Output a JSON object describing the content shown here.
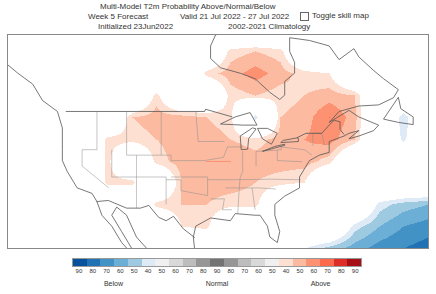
{
  "chart_data": {
    "type": "heatmap",
    "title": "Multi-Model T2m Probability Above/Normal/Below",
    "subtitle": [
      [
        "Week 5 Forecast",
        "Valid 21 Jul 2022 - 27 Jul 2022"
      ],
      [
        "Initialized 23Jun2022",
        "2002-2021 Climatology"
      ]
    ],
    "annotations": [
      "Toggle skill map"
    ],
    "x": [
      -135,
      -130,
      -125,
      -120,
      -115,
      -110,
      -105,
      -100,
      -95,
      -90,
      -85,
      -80,
      -75,
      -70,
      -65,
      -60,
      -55,
      -50
    ],
    "y": [
      24,
      28,
      32,
      36,
      40,
      44,
      48,
      52,
      56,
      60,
      64
    ],
    "cells": [
      [
        0,
        0,
        0,
        0,
        0,
        0,
        0,
        0,
        0,
        0,
        0,
        0,
        -40,
        -55,
        -65,
        -75,
        -80,
        -85
      ],
      [
        0,
        0,
        0,
        0,
        0,
        0,
        0,
        40,
        45,
        0,
        0,
        0,
        0,
        0,
        -45,
        -60,
        -70,
        -75
      ],
      [
        0,
        0,
        0,
        -40,
        0,
        0,
        45,
        50,
        50,
        45,
        45,
        0,
        0,
        0,
        0,
        -45,
        -55,
        -60
      ],
      [
        0,
        0,
        -40,
        0,
        45,
        45,
        0,
        50,
        55,
        55,
        50,
        45,
        40,
        0,
        0,
        0,
        0,
        0
      ],
      [
        0,
        -40,
        0,
        0,
        45,
        0,
        45,
        55,
        60,
        60,
        55,
        55,
        55,
        45,
        0,
        0,
        0,
        0
      ],
      [
        -40,
        -40,
        0,
        0,
        45,
        45,
        50,
        55,
        55,
        50,
        45,
        55,
        60,
        65,
        50,
        0,
        -45,
        0
      ],
      [
        -40,
        -40,
        0,
        0,
        0,
        50,
        55,
        55,
        50,
        45,
        -50,
        50,
        55,
        70,
        55,
        0,
        -50,
        0
      ],
      [
        -40,
        0,
        0,
        0,
        0,
        0,
        45,
        0,
        0,
        45,
        50,
        45,
        50,
        55,
        50,
        0,
        0,
        0
      ],
      [
        0,
        0,
        0,
        0,
        0,
        0,
        0,
        0,
        45,
        55,
        65,
        55,
        45,
        40,
        0,
        0,
        0,
        0
      ],
      [
        0,
        0,
        0,
        0,
        0,
        0,
        0,
        0,
        0,
        45,
        50,
        45,
        0,
        0,
        0,
        0,
        0,
        0
      ],
      [
        0,
        0,
        0,
        0,
        0,
        0,
        0,
        0,
        0,
        0,
        0,
        0,
        0,
        0,
        0,
        0,
        0,
        0
      ]
    ],
    "xlim": [
      -135,
      -50
    ],
    "ylim": [
      24,
      63
    ],
    "tick_labels": false,
    "colorbar": {
      "below": {
        "label": "Below",
        "ticks": [
          90,
          80,
          70,
          60,
          50,
          40
        ],
        "colors": [
          "#08519c",
          "#2171b5",
          "#4292c6",
          "#6baed6",
          "#9ecae1",
          "#deebf7"
        ]
      },
      "normal": {
        "label": "Normal",
        "ticks": [
          50,
          60,
          70,
          80,
          90,
          80,
          70,
          60,
          50
        ],
        "colors": [
          "#f0f0f0",
          "#d9d9d9",
          "#bdbdbd",
          "#969696",
          "#737373",
          "#969696",
          "#bdbdbd",
          "#d9d9d9",
          "#f0f0f0"
        ]
      },
      "above": {
        "label": "Above",
        "ticks": [
          40,
          50,
          60,
          70,
          80,
          90
        ],
        "colors": [
          "#fde0d2",
          "#fcbba1",
          "#fc9272",
          "#fb6a4a",
          "#de2d26",
          "#a50f15"
        ]
      }
    }
  }
}
